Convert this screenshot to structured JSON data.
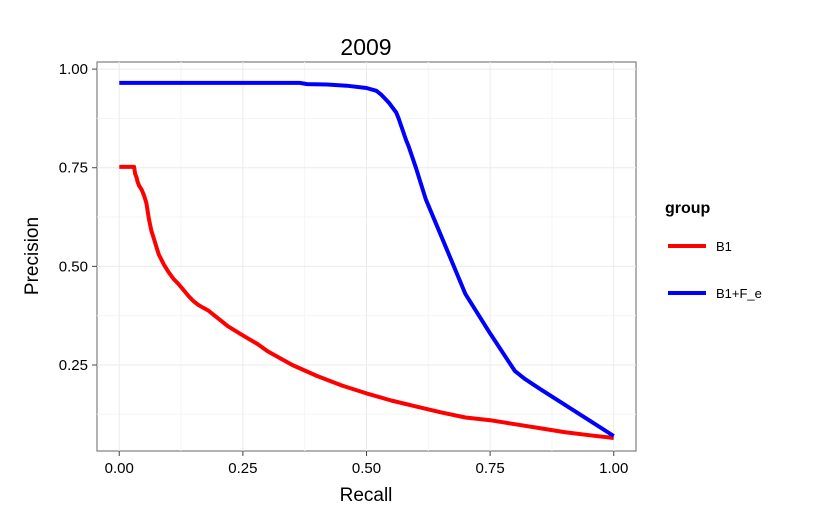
{
  "chart_data": {
    "type": "line",
    "title": "2009",
    "xlabel": "Recall",
    "ylabel": "Precision",
    "xlim": [
      -0.045,
      1.045
    ],
    "ylim": [
      0.032,
      1.018
    ],
    "xticks": [
      0.0,
      0.25,
      0.5,
      0.75,
      1.0
    ],
    "xtick_labels": [
      "0.00",
      "0.25",
      "0.50",
      "0.75",
      "1.00"
    ],
    "yticks": [
      0.25,
      0.5,
      0.75,
      1.0
    ],
    "ytick_labels": [
      "0.25",
      "0.50",
      "0.75",
      "1.00"
    ],
    "grid": true,
    "legend": {
      "title": "group",
      "position": "right"
    },
    "series": [
      {
        "name": "B1",
        "color": "#ff0000",
        "x": [
          0.0,
          0.03,
          0.032,
          0.035,
          0.037,
          0.04,
          0.045,
          0.05,
          0.055,
          0.06,
          0.065,
          0.07,
          0.075,
          0.08,
          0.09,
          0.1,
          0.11,
          0.12,
          0.13,
          0.14,
          0.15,
          0.16,
          0.17,
          0.18,
          0.19,
          0.2,
          0.22,
          0.25,
          0.28,
          0.3,
          0.35,
          0.4,
          0.45,
          0.5,
          0.55,
          0.6,
          0.65,
          0.7,
          0.75,
          0.8,
          0.85,
          0.9,
          0.95,
          1.0
        ],
        "y": [
          0.752,
          0.752,
          0.735,
          0.725,
          0.715,
          0.705,
          0.695,
          0.68,
          0.66,
          0.62,
          0.59,
          0.57,
          0.55,
          0.53,
          0.505,
          0.485,
          0.468,
          0.455,
          0.44,
          0.425,
          0.412,
          0.402,
          0.395,
          0.388,
          0.378,
          0.368,
          0.348,
          0.325,
          0.303,
          0.285,
          0.25,
          0.222,
          0.198,
          0.178,
          0.16,
          0.145,
          0.13,
          0.117,
          0.11,
          0.1,
          0.09,
          0.08,
          0.072,
          0.065
        ]
      },
      {
        "name": "B1+F_e",
        "color": "#0000ff",
        "x": [
          0.0,
          0.1,
          0.2,
          0.3,
          0.365,
          0.38,
          0.42,
          0.46,
          0.5,
          0.52,
          0.53,
          0.545,
          0.56,
          0.565,
          0.58,
          0.585,
          0.6,
          0.62,
          0.65,
          0.7,
          0.75,
          0.8,
          0.82,
          0.85,
          0.9,
          0.95,
          1.0
        ],
        "y": [
          0.965,
          0.965,
          0.965,
          0.965,
          0.965,
          0.962,
          0.961,
          0.958,
          0.952,
          0.945,
          0.935,
          0.915,
          0.89,
          0.875,
          0.82,
          0.805,
          0.75,
          0.67,
          0.58,
          0.43,
          0.33,
          0.235,
          0.215,
          0.19,
          0.15,
          0.11,
          0.07
        ]
      }
    ]
  }
}
